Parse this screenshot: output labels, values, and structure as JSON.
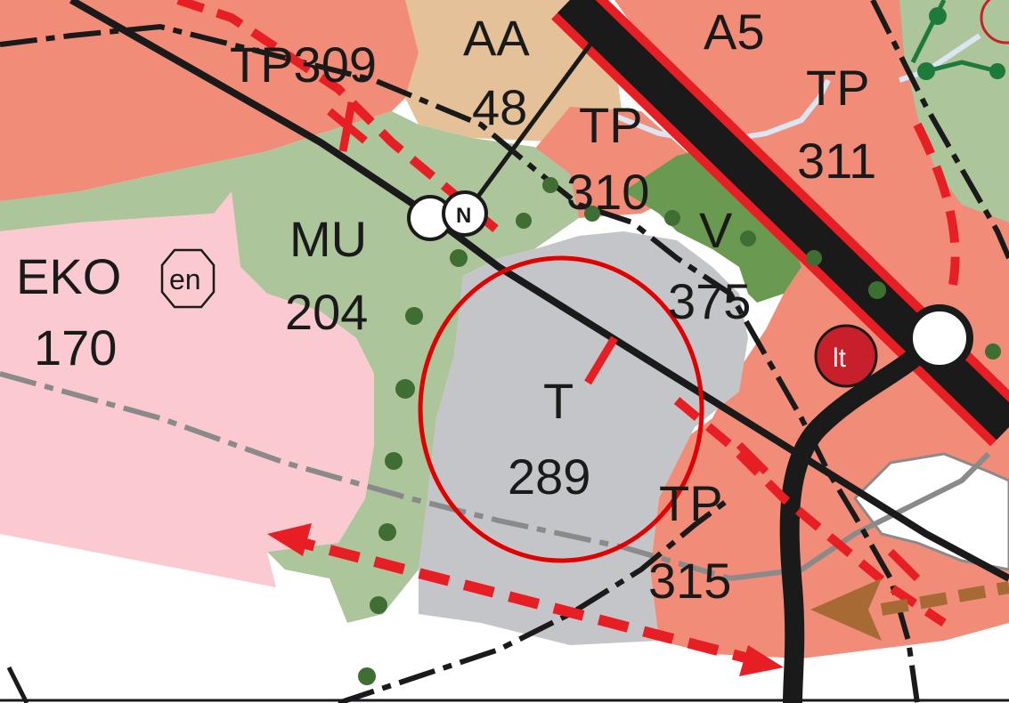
{
  "map": {
    "zones": [
      {
        "code": "TP309",
        "kind": "industry-zone",
        "id": "309"
      },
      {
        "code": "AA",
        "number": "48",
        "kind": "residential-zone"
      },
      {
        "code": "A5",
        "kind": "residential-zone"
      },
      {
        "code": "TP",
        "number": "310",
        "kind": "industry-zone"
      },
      {
        "code": "TP",
        "number": "311",
        "kind": "industry-zone"
      },
      {
        "code": "MU",
        "number": "204",
        "kind": "agricultural-zone"
      },
      {
        "code": "V",
        "number": "375",
        "kind": "recreation-zone"
      },
      {
        "code": "EKO",
        "number": "170",
        "kind": "eco-zone"
      },
      {
        "code": "T",
        "number": "289",
        "kind": "industrial-zone-highlighted"
      },
      {
        "code": "TP",
        "number": "315",
        "kind": "industry-zone"
      }
    ],
    "symbols": {
      "en_badge": "en",
      "lt_badge": "lt",
      "north_arrow": "N",
      "highlight_circle": "red-circle-icon",
      "junction": "junction-circle-icon"
    },
    "colors": {
      "industry": "#f08c78",
      "residential": "#e5c19a",
      "green_area": "#adc59b",
      "dark_green": "#6a9a52",
      "eco": "#fbcad0",
      "industrial_gray": "#c4c5c8",
      "road": "#1a1a1a",
      "red_line": "#e81e25",
      "brown_arrow": "#a86a35",
      "lt_fill": "#c8202a",
      "highlight": "#e00000"
    }
  }
}
